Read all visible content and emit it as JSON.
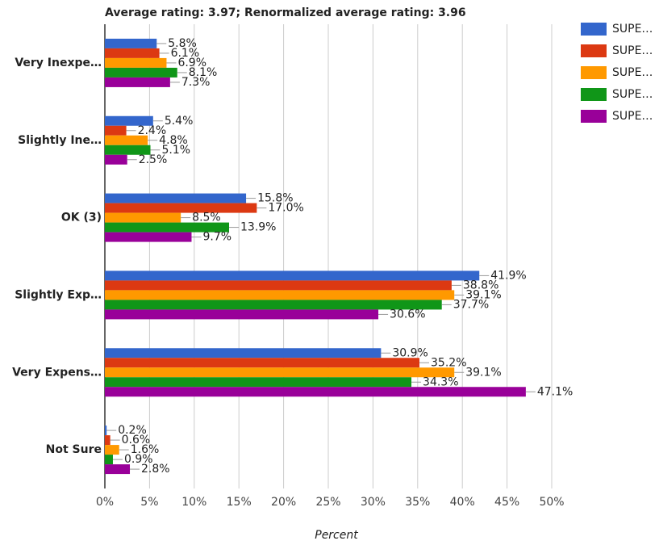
{
  "chart_data": {
    "type": "bar",
    "orientation": "horizontal",
    "title": "Average rating: 3.97; Renormalized average rating: 3.96",
    "xlabel": "Percent",
    "categories": [
      "Very Inexpe…",
      "Slightly Ine…",
      "OK (3)",
      "Slightly Exp…",
      "Very Expens…",
      "Not Sure"
    ],
    "series": [
      {
        "name": "SUPE…",
        "color": "#3366cc",
        "values": [
          5.8,
          5.4,
          15.8,
          41.9,
          30.9,
          0.2
        ],
        "value_labels": [
          "5.8%",
          "5.4%",
          "15.8%",
          "41.9%",
          "30.9%",
          "0.2%"
        ]
      },
      {
        "name": "SUPE…",
        "color": "#dc3912",
        "values": [
          6.1,
          2.4,
          17.0,
          38.8,
          35.2,
          0.6
        ],
        "value_labels": [
          "6.1%",
          "2.4%",
          "17.0%",
          "38.8%",
          "35.2%",
          "0.6%"
        ]
      },
      {
        "name": "SUPE…",
        "color": "#ff9900",
        "values": [
          6.9,
          4.8,
          8.5,
          39.1,
          39.1,
          1.6
        ],
        "value_labels": [
          "6.9%",
          "4.8%",
          "8.5%",
          "39.1%",
          "39.1%",
          "1.6%"
        ]
      },
      {
        "name": "SUPE…",
        "color": "#109618",
        "values": [
          8.1,
          5.1,
          13.9,
          37.7,
          34.3,
          0.9
        ],
        "value_labels": [
          "8.1%",
          "5.1%",
          "13.9%",
          "37.7%",
          "34.3%",
          "0.9%"
        ]
      },
      {
        "name": "SUPE…",
        "color": "#990099",
        "values": [
          7.3,
          2.5,
          9.7,
          30.6,
          47.1,
          2.8
        ],
        "value_labels": [
          "7.3%",
          "2.5%",
          "9.7%",
          "30.6%",
          "47.1%",
          "2.8%"
        ]
      }
    ],
    "xlim": [
      0,
      50
    ],
    "xticks": [
      {
        "value": 0,
        "label": "0%"
      },
      {
        "value": 5,
        "label": "5%"
      },
      {
        "value": 10,
        "label": "10%"
      },
      {
        "value": 15,
        "label": "15%"
      },
      {
        "value": 20,
        "label": "20%"
      },
      {
        "value": 25,
        "label": "25%"
      },
      {
        "value": 30,
        "label": "30%"
      },
      {
        "value": 35,
        "label": "35%"
      },
      {
        "value": 40,
        "label": "40%"
      },
      {
        "value": 45,
        "label": "45%"
      },
      {
        "value": 50,
        "label": "50%"
      }
    ],
    "grid": true,
    "legend": "right"
  }
}
